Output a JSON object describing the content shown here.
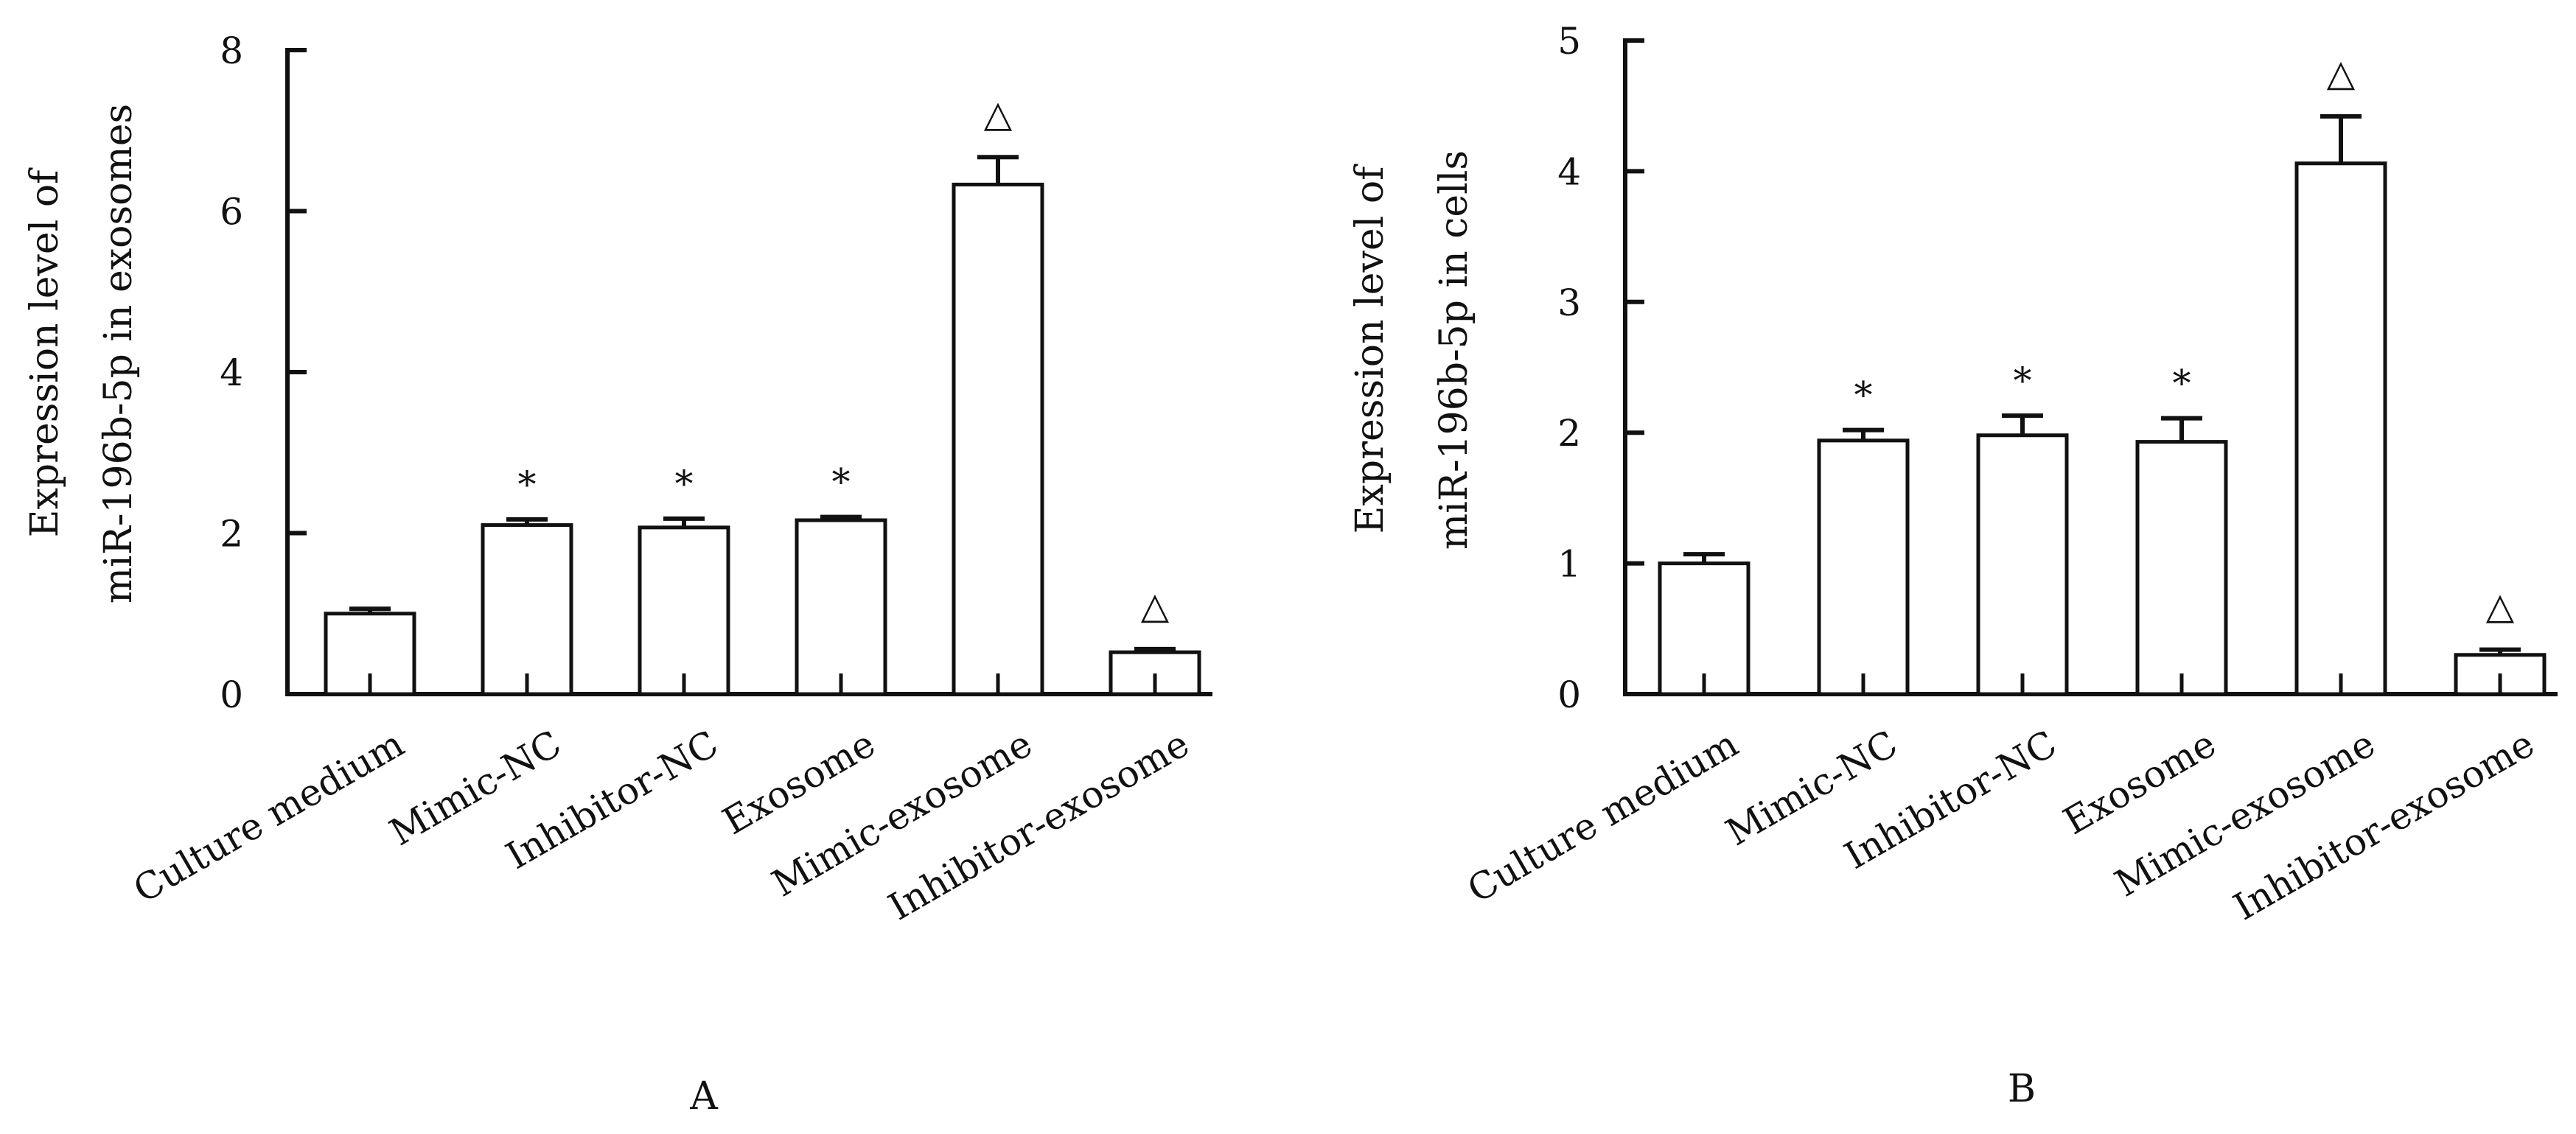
{
  "chart_data": [
    {
      "type": "bar",
      "panel_label": "A",
      "ylabel_line1": "Expression level of",
      "ylabel_line2": "miR-196b-5p in exosomes",
      "xlabel": "",
      "ylim": [
        0,
        8
      ],
      "yticks": [
        0,
        2,
        4,
        6,
        8
      ],
      "categories": [
        "Culture medium",
        "Mimic-NC",
        "Inhibitor-NC",
        "Exosome",
        "Mimic-exosome",
        "Inhibitor-exosome"
      ],
      "values": [
        1.0,
        2.1,
        2.07,
        2.16,
        6.33,
        0.52
      ],
      "errors": [
        0.06,
        0.07,
        0.11,
        0.04,
        0.34,
        0.04
      ],
      "annotations": [
        "",
        "*",
        "*",
        "*",
        "△",
        "△"
      ],
      "grid": false
    },
    {
      "type": "bar",
      "panel_label": "B",
      "ylabel_line1": "Expression level of",
      "ylabel_line2": "miR-196b-5p in cells",
      "xlabel": "",
      "ylim": [
        0,
        5
      ],
      "yticks": [
        0,
        1,
        2,
        3,
        4,
        5
      ],
      "categories": [
        "Culture medium",
        "Mimic-NC",
        "Inhibitor-NC",
        "Exosome",
        "Mimic-exosome",
        "Inhibitor-exosome"
      ],
      "values": [
        1.0,
        1.94,
        1.98,
        1.93,
        4.06,
        0.3
      ],
      "errors": [
        0.07,
        0.08,
        0.15,
        0.18,
        0.36,
        0.04
      ],
      "annotations": [
        "",
        "*",
        "*",
        "*",
        "△",
        "△"
      ],
      "grid": false
    }
  ]
}
